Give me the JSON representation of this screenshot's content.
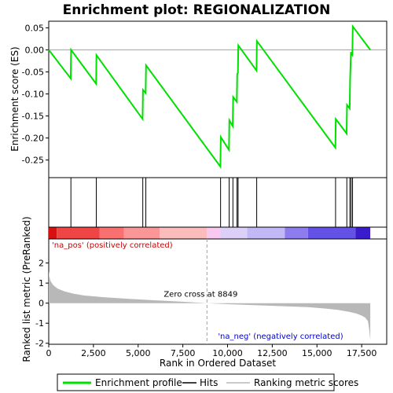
{
  "chart_data": {
    "type": "line",
    "title": "Enrichment plot: REGIONALIZATION",
    "top_panel": {
      "ylabel": "Enrichment score (ES)",
      "ylim": [
        -0.29,
        0.065
      ],
      "yticks": [
        0.05,
        0.0,
        -0.05,
        -0.1,
        -0.15,
        -0.2,
        -0.25
      ],
      "ytick_labels": [
        "0.05",
        "0.00",
        "-0.05",
        "-0.10",
        "-0.15",
        "-0.20",
        "-0.25"
      ],
      "series": [
        {
          "name": "Enrichment profile",
          "color": "#00e000",
          "x": [
            0,
            1230,
            1250,
            2650,
            2670,
            5250,
            5270,
            5420,
            5440,
            9600,
            9620,
            10080,
            10100,
            10290,
            10310,
            10520,
            10540,
            10580,
            10600,
            11620,
            11640,
            16030,
            16050,
            16660,
            16680,
            16830,
            16850,
            16900,
            16920,
            16980,
            17000,
            17980
          ],
          "values": [
            0.0,
            -0.065,
            0.0,
            -0.077,
            -0.012,
            -0.157,
            -0.091,
            -0.098,
            -0.035,
            -0.265,
            -0.198,
            -0.227,
            -0.16,
            -0.173,
            -0.107,
            -0.118,
            -0.055,
            -0.052,
            0.01,
            -0.047,
            0.02,
            -0.222,
            -0.157,
            -0.19,
            -0.125,
            -0.133,
            -0.07,
            -0.005,
            -0.01,
            -0.012,
            0.053,
            0.0
          ]
        }
      ]
    },
    "hits": {
      "name": "Hits",
      "positions": [
        1240,
        2660,
        5260,
        5430,
        9610,
        10090,
        10300,
        10530,
        10590,
        11630,
        16040,
        16670,
        16840,
        16910,
        16990
      ]
    },
    "bottom_panel": {
      "ylabel": "Ranked list metric (PreRanked)",
      "ylim": [
        -2.05,
        3.2
      ],
      "yticks": [
        2,
        1,
        0,
        -1,
        -2
      ],
      "ytick_labels": [
        "2",
        "1",
        "0",
        "-1",
        "-2"
      ],
      "series": [
        {
          "name": "Ranking metric scores",
          "color": "#b8b8b8",
          "x": [
            0,
            30,
            100,
            250,
            500,
            900,
            1400,
            2000,
            3000,
            4500,
            6000,
            7500,
            8849,
            10000,
            11500,
            13000,
            14500,
            15500,
            16200,
            16800,
            17200,
            17500,
            17700,
            17850,
            17920,
            17980
          ],
          "values": [
            1.62,
            1.35,
            1.1,
            0.9,
            0.72,
            0.58,
            0.47,
            0.38,
            0.3,
            0.21,
            0.14,
            0.07,
            0.0,
            -0.05,
            -0.1,
            -0.15,
            -0.2,
            -0.27,
            -0.34,
            -0.43,
            -0.52,
            -0.62,
            -0.72,
            -0.9,
            -1.3,
            -1.85
          ]
        }
      ],
      "annotations": {
        "pos_label": "'na_pos' (positively correlated)",
        "neg_label": "'na_neg' (negatively correlated)",
        "zero_cross_label": "Zero cross at 8849",
        "zero_cross": 8849,
        "pos_color": "#cc0000",
        "neg_color": "#0000cc"
      }
    },
    "colorbar": {
      "colors": [
        "#d81010",
        "#f04545",
        "#f87070",
        "#fb9696",
        "#fbbcbc",
        "#f8c8f0",
        "#dcd0f8",
        "#c3b8f6",
        "#8c7cee",
        "#6452e6",
        "#3a1ccc"
      ],
      "breaks": [
        0,
        450,
        2850,
        4200,
        6200,
        8849,
        9600,
        11100,
        13200,
        14500,
        17150,
        17980
      ]
    },
    "xaxis": {
      "xlabel": "Rank in Ordered Dataset",
      "xlim": [
        0,
        18900
      ],
      "xticks": [
        0,
        2500,
        5000,
        7500,
        10000,
        12500,
        15000,
        17500
      ],
      "xtick_labels": [
        "0",
        "2,500",
        "5,000",
        "7,500",
        "10,000",
        "12,500",
        "15,000",
        "17,500"
      ]
    },
    "legend": {
      "placement": "bottom",
      "entries": [
        {
          "label": "Enrichment profile",
          "color": "#00e000"
        },
        {
          "label": "Hits",
          "color": "#000000"
        },
        {
          "label": "Ranking metric scores",
          "color": "#b8b8b8"
        }
      ]
    }
  }
}
